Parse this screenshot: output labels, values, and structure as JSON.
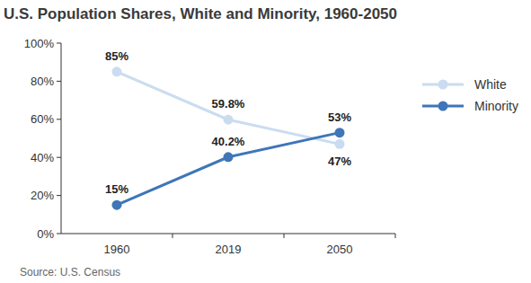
{
  "chart_data": {
    "type": "line",
    "title": "U.S. Population Shares, White and Minority, 1960-2050",
    "source": "Source: U.S. Census",
    "categories": [
      "1960",
      "2019",
      "2050"
    ],
    "series": [
      {
        "name": "White",
        "color": "#cadcf0",
        "values": [
          85,
          59.8,
          47
        ],
        "value_labels": [
          "85%",
          "59.8%",
          "47%"
        ],
        "marker": "circle"
      },
      {
        "name": "Minority",
        "color": "#3e76b8",
        "values": [
          15,
          40.2,
          53
        ],
        "value_labels": [
          "15%",
          "40.2%",
          "53%"
        ],
        "marker": "circle"
      }
    ],
    "ylim": [
      0,
      100
    ],
    "yticks": [
      {
        "value": 0,
        "label": "0%"
      },
      {
        "value": 20,
        "label": "20%"
      },
      {
        "value": 40,
        "label": "40%"
      },
      {
        "value": 60,
        "label": "60%"
      },
      {
        "value": 80,
        "label": "80%"
      },
      {
        "value": 100,
        "label": "100%"
      }
    ],
    "grid": false,
    "legend": "right",
    "data_labels": true
  }
}
